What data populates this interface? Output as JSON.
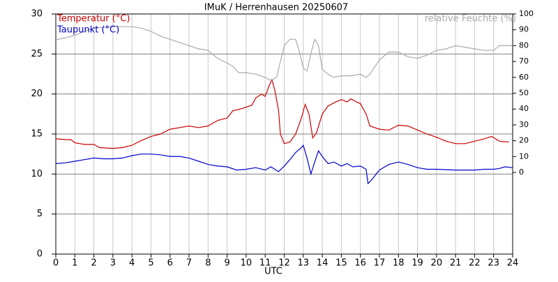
{
  "chart_data": {
    "type": "line",
    "title": "IMuK / Herrenhausen 20250607",
    "xlabel": "UTC",
    "xlim": [
      0,
      24
    ],
    "xticks": [
      0,
      1,
      2,
      3,
      4,
      5,
      6,
      7,
      8,
      9,
      10,
      11,
      12,
      13,
      14,
      15,
      16,
      17,
      18,
      19,
      20,
      21,
      22,
      23,
      24
    ],
    "ylim": [
      0,
      30
    ],
    "yticks": [
      0,
      5,
      10,
      15,
      20,
      25,
      30
    ],
    "y2lim": [
      -51.5,
      100
    ],
    "y2ticks": [
      0,
      10,
      20,
      30,
      40,
      50,
      60,
      70,
      80,
      90,
      100
    ],
    "grid": true,
    "series": [
      {
        "name": "Temperatur (°C)",
        "color": "#cc0000",
        "x": [
          0,
          0.5,
          0.8,
          1.0,
          1.5,
          2.0,
          2.3,
          3.0,
          3.5,
          4.0,
          4.5,
          5.0,
          5.5,
          6.0,
          6.5,
          7.0,
          7.5,
          8.0,
          8.5,
          9.0,
          9.3,
          9.8,
          10.3,
          10.5,
          10.8,
          11.0,
          11.2,
          11.35,
          11.5,
          11.7,
          11.8,
          12.0,
          12.3,
          12.6,
          12.9,
          13.1,
          13.3,
          13.5,
          13.7,
          14.0,
          14.3,
          14.7,
          15.0,
          15.3,
          15.5,
          15.8,
          16.0,
          16.3,
          16.5,
          17.0,
          17.5,
          18.0,
          18.5,
          19.0,
          19.5,
          20.0,
          20.5,
          21.0,
          21.5,
          22.0,
          22.5,
          22.9,
          23.3,
          23.8
        ],
        "values": [
          14.4,
          14.3,
          14.3,
          13.9,
          13.7,
          13.7,
          13.3,
          13.2,
          13.3,
          13.6,
          14.2,
          14.7,
          15.0,
          15.6,
          15.8,
          16.0,
          15.8,
          16.0,
          16.7,
          17.0,
          17.9,
          18.2,
          18.6,
          19.5,
          20.0,
          19.7,
          21.0,
          21.8,
          20.5,
          18.0,
          15.0,
          13.8,
          14.0,
          15.0,
          17.0,
          18.7,
          17.5,
          14.5,
          15.2,
          17.5,
          18.5,
          19.0,
          19.3,
          19.0,
          19.4,
          19.0,
          18.8,
          17.5,
          16.0,
          15.6,
          15.5,
          16.1,
          16.0,
          15.5,
          15.0,
          14.6,
          14.1,
          13.8,
          13.8,
          14.1,
          14.4,
          14.7,
          14.1,
          14.0
        ]
      },
      {
        "name": "Taupunkt (°C)",
        "color": "#0000cc",
        "x": [
          0,
          0.5,
          1,
          1.5,
          2,
          2.5,
          3,
          3.5,
          4,
          4.5,
          5,
          5.5,
          6,
          6.5,
          7,
          7.5,
          8,
          8.5,
          9,
          9.5,
          10,
          10.5,
          11,
          11.3,
          11.7,
          12,
          12.3,
          12.6,
          12.9,
          13.0,
          13.2,
          13.4,
          13.6,
          13.8,
          14.0,
          14.3,
          14.6,
          15,
          15.3,
          15.6,
          16,
          16.3,
          16.4,
          16.6,
          17,
          17.5,
          18,
          18.5,
          19,
          19.5,
          20,
          21,
          22,
          22.5,
          23,
          23.3,
          23.6,
          24
        ],
        "values": [
          11.3,
          11.4,
          11.6,
          11.8,
          12.0,
          11.9,
          11.9,
          12.0,
          12.3,
          12.5,
          12.5,
          12.4,
          12.2,
          12.2,
          12.0,
          11.6,
          11.2,
          11.0,
          10.9,
          10.5,
          10.6,
          10.8,
          10.5,
          10.9,
          10.3,
          11.0,
          11.8,
          12.7,
          13.3,
          13.6,
          12.0,
          10.0,
          11.5,
          12.9,
          12.2,
          11.3,
          11.5,
          11.0,
          11.3,
          10.9,
          11.0,
          10.6,
          8.8,
          9.3,
          10.5,
          11.2,
          11.5,
          11.2,
          10.8,
          10.6,
          10.6,
          10.5,
          10.5,
          10.6,
          10.6,
          10.7,
          10.9,
          10.8
        ]
      },
      {
        "name": "relative Feuchte (%)",
        "color": "#aaaaaa",
        "axis": "y2",
        "x": [
          0,
          0.5,
          1,
          1.5,
          2,
          3,
          4,
          4.5,
          5,
          5.5,
          6,
          7,
          7.5,
          8,
          8.5,
          9,
          9.3,
          9.6,
          10,
          10.5,
          11,
          11.3,
          11.6,
          11.8,
          12,
          12.3,
          12.6,
          12.8,
          13,
          13.2,
          13.4,
          13.6,
          13.8,
          14,
          14.3,
          14.6,
          15,
          15.5,
          16,
          16.3,
          16.5,
          17,
          17.5,
          18,
          18.5,
          19,
          19.5,
          20,
          20.5,
          21,
          21.5,
          22,
          22.5,
          23,
          23.3,
          24
        ],
        "values": [
          83.7,
          85,
          86.5,
          89,
          91,
          92,
          92,
          91,
          89,
          86,
          84,
          80,
          78,
          77,
          72,
          69,
          67,
          63,
          63,
          62,
          60,
          58,
          60,
          70,
          80,
          84,
          84,
          76,
          66,
          64,
          75,
          84,
          80,
          65,
          62,
          60,
          61,
          61,
          62,
          60,
          62,
          71,
          76,
          76,
          73,
          72,
          74,
          77,
          78,
          80,
          79,
          78,
          77,
          77,
          80,
          80
        ]
      }
    ]
  }
}
